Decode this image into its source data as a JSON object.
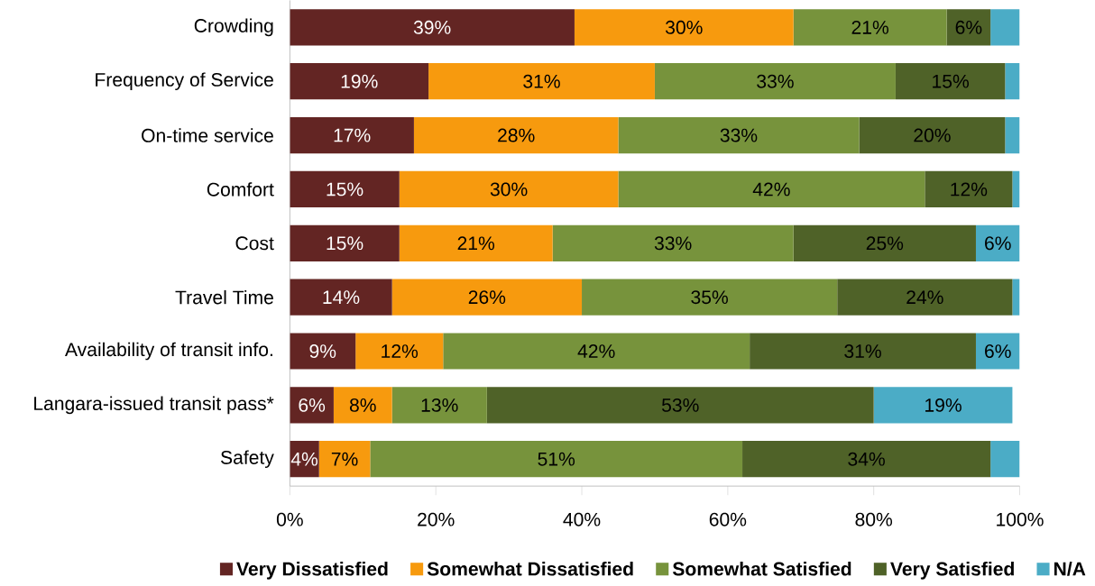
{
  "chart_data": {
    "type": "bar",
    "orientation": "horizontal",
    "stacked": true,
    "categories": [
      "Crowding",
      "Frequency of Service",
      "On-time service",
      "Comfort",
      "Cost",
      "Travel Time",
      "Availability of transit info.",
      "Langara-issued transit pass*",
      "Safety"
    ],
    "series": [
      {
        "name": "Very Dissatisfied",
        "color": "#632523",
        "values": [
          39,
          19,
          17,
          15,
          15,
          14,
          9,
          6,
          4
        ],
        "value_labels": [
          "39%",
          "19%",
          "17%",
          "15%",
          "15%",
          "14%",
          "9%",
          "6%",
          "4%"
        ]
      },
      {
        "name": "Somewhat Dissatisfied",
        "color": "#f79a0e",
        "values": [
          30,
          31,
          28,
          30,
          21,
          26,
          12,
          8,
          7
        ],
        "value_labels": [
          "30%",
          "31%",
          "28%",
          "30%",
          "21%",
          "26%",
          "12%",
          "8%",
          "7%"
        ]
      },
      {
        "name": "Somewhat Satisfied",
        "color": "#77933c",
        "values": [
          21,
          33,
          33,
          42,
          33,
          35,
          42,
          13,
          51
        ],
        "value_labels": [
          "21%",
          "33%",
          "33%",
          "42%",
          "33%",
          "35%",
          "42%",
          "13%",
          "51%"
        ]
      },
      {
        "name": "Very Satisfied",
        "color": "#4f6228",
        "values": [
          6,
          15,
          20,
          12,
          25,
          24,
          31,
          53,
          34
        ],
        "value_labels": [
          "6%",
          "15%",
          "20%",
          "12%",
          "25%",
          "24%",
          "31%",
          "53%",
          "34%"
        ]
      },
      {
        "name": "N/A",
        "color": "#4bacc6",
        "values": [
          4,
          2,
          2,
          1,
          6,
          1,
          6,
          19,
          4
        ],
        "value_labels": [
          null,
          null,
          null,
          null,
          "6%",
          null,
          "6%",
          "19%",
          null
        ]
      }
    ],
    "xlim": [
      0,
      100
    ],
    "xticks": [
      {
        "value": 0,
        "label": "0%"
      },
      {
        "value": 20,
        "label": "20%"
      },
      {
        "value": 40,
        "label": "40%"
      },
      {
        "value": 60,
        "label": "60%"
      },
      {
        "value": 80,
        "label": "80%"
      },
      {
        "value": 100,
        "label": "100%"
      }
    ],
    "grid": false,
    "legend": "bottom"
  }
}
